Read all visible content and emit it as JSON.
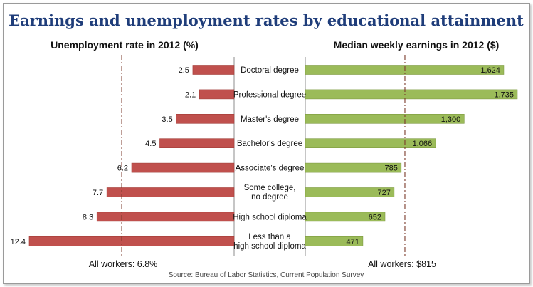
{
  "chart_data": {
    "type": "bar",
    "title": "Earnings and unemployment rates by educational attainment",
    "categories": [
      [
        "Doctoral degree"
      ],
      [
        "Professional degree"
      ],
      [
        "Master's degree"
      ],
      [
        "Bachelor's degree"
      ],
      [
        "Associate's degree"
      ],
      [
        "Some college,",
        "no degree"
      ],
      [
        "High school diploma"
      ],
      [
        "Less than a",
        "high school diploma"
      ]
    ],
    "series": [
      {
        "name": "Unemployment rate in 2012 (%)",
        "values": [
          2.5,
          2.1,
          3.5,
          4.5,
          6.2,
          7.7,
          8.3,
          12.4
        ],
        "labels": [
          "2.5",
          "2.1",
          "3.5",
          "4.5",
          "6.2",
          "7.7",
          "8.3",
          "12.4"
        ],
        "color": "#c0504d",
        "reference": {
          "label": "All workers: 6.8%",
          "value": 6.8
        }
      },
      {
        "name": "Median weekly earnings in 2012 ($)",
        "values": [
          1624,
          1735,
          1300,
          1066,
          785,
          727,
          652,
          471
        ],
        "labels": [
          "1,624",
          "1,735",
          "1,300",
          "1,066",
          "785",
          "727",
          "652",
          "471"
        ],
        "color": "#9bbb59",
        "reference": {
          "label": "All workers: $815",
          "value": 815
        }
      }
    ],
    "xlim_left": [
      0,
      12.4
    ],
    "xlim_right": [
      0,
      1735
    ],
    "grid": false,
    "source": "Source: Bureau of Labor Statistics, Current Population Survey"
  }
}
